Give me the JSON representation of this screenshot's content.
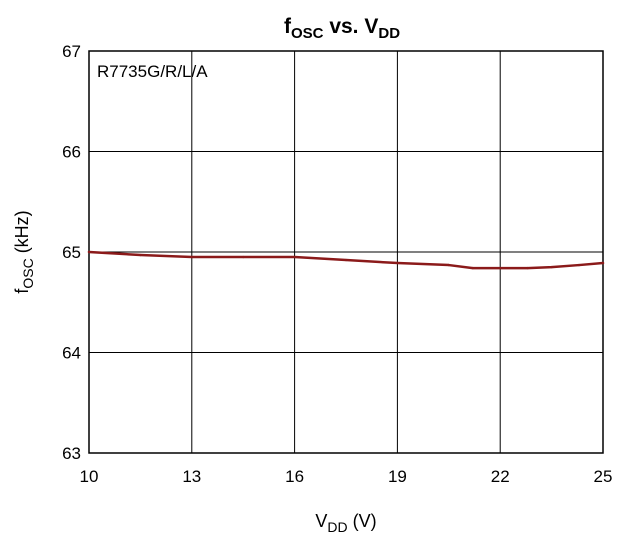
{
  "chart_data": {
    "type": "line",
    "title": {
      "main": "f",
      "main_sub": "OSC",
      "mid": " vs. V",
      "mid_sub": "DD"
    },
    "annotation": "R7735G/R/L/A",
    "xlabel": {
      "main": "V",
      "sub": "DD",
      "unit": " (V)"
    },
    "ylabel": {
      "main": "f",
      "sub": "OSC",
      "unit": " (kHz)"
    },
    "xlim": [
      10,
      25
    ],
    "ylim": [
      63,
      67
    ],
    "xticks": [
      10,
      13,
      16,
      19,
      22,
      25
    ],
    "yticks": [
      63,
      64,
      65,
      66,
      67
    ],
    "grid": true,
    "series": [
      {
        "color": "#8b1a1a",
        "x": [
          10,
          11.5,
          13,
          14.5,
          16,
          17.5,
          19,
          20.5,
          21.2,
          22,
          22.8,
          23.5,
          24.3,
          25
        ],
        "y": [
          65.0,
          64.97,
          64.95,
          64.95,
          64.95,
          64.92,
          64.89,
          64.87,
          64.84,
          64.84,
          64.84,
          64.85,
          64.87,
          64.89
        ]
      }
    ]
  }
}
